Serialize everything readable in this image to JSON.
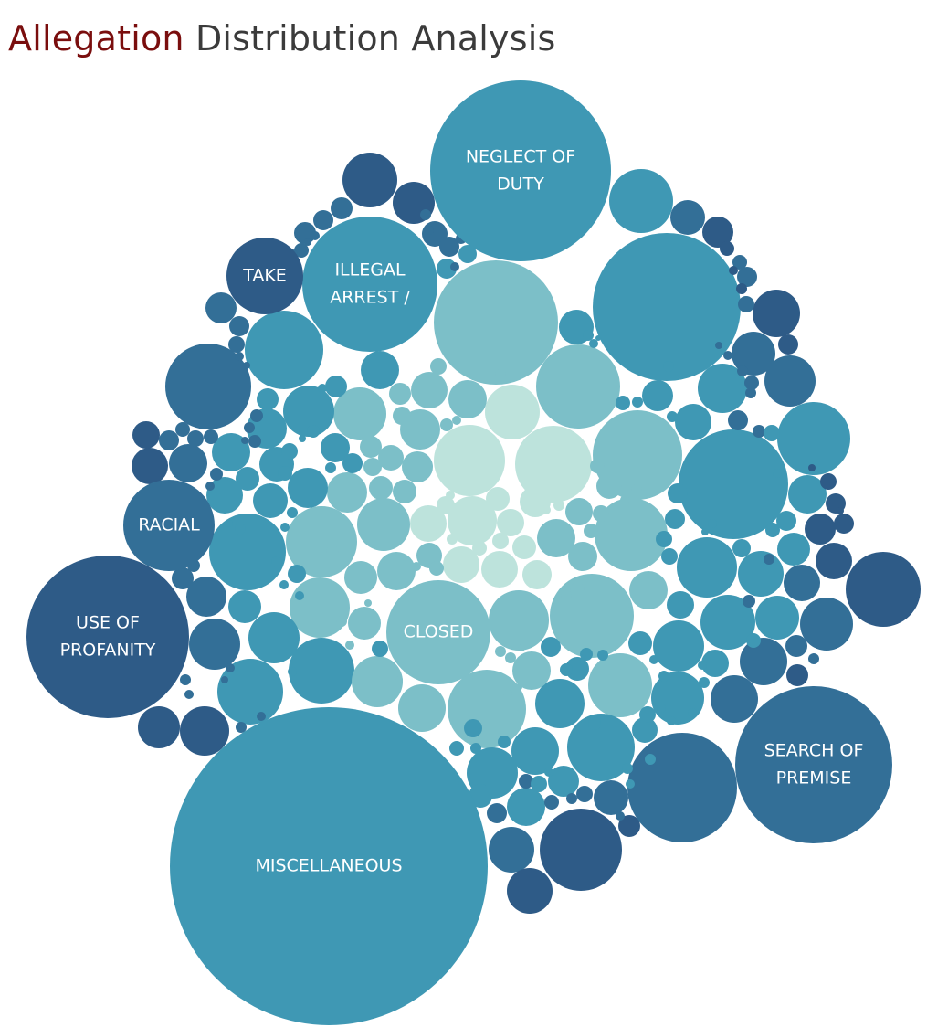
{
  "title": {
    "highlight": "Allegation",
    "rest": "Distribution Analysis",
    "highlight_color": "#7a0e0e",
    "text_color": "#3b3b3b"
  },
  "palette": {
    "darkest": "#2e5b87",
    "dark": "#336f97",
    "mid": "#3f98b4",
    "light": "#7cbfc8",
    "lightest": "#bde3dc"
  },
  "chart_data": {
    "type": "bubble",
    "title": "Allegation Distribution Analysis",
    "labeled_bubbles": [
      {
        "name": "MISCELLANEOUS",
        "lines": [
          "MISCELLANEOUS"
        ]
      },
      {
        "name": "NEGLECT OF DUTY",
        "lines": [
          "NEGLECT OF",
          "DUTY"
        ]
      },
      {
        "name": "USE OF PROFANITY",
        "lines": [
          "USE OF",
          "PROFANITY"
        ]
      },
      {
        "name": "SEARCH OF PREMISE",
        "lines": [
          "SEARCH OF",
          "PREMISE"
        ]
      },
      {
        "name": "ILLEGAL ARREST /",
        "lines": [
          "ILLEGAL",
          "ARREST /"
        ]
      },
      {
        "name": "CLOSED",
        "lines": [
          "CLOSED"
        ]
      },
      {
        "name": "RACIAL",
        "lines": [
          "RACIAL"
        ]
      },
      {
        "name": "TAKE",
        "lines": [
          "TAKE"
        ]
      }
    ]
  }
}
